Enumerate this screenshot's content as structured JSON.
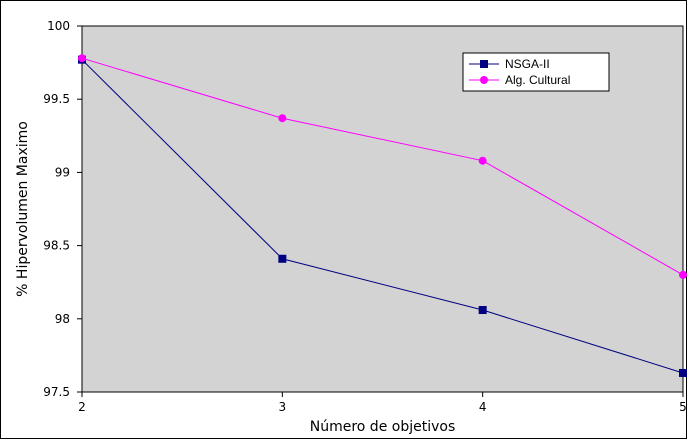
{
  "chart_data": {
    "type": "line",
    "x": [
      2,
      3,
      4,
      5
    ],
    "xlabel": "Número de objetivos",
    "ylabel": "% Hipervolumen Maximo",
    "xlim": [
      2,
      5
    ],
    "ylim": [
      97.5,
      100
    ],
    "x_ticks": [
      "2",
      "3",
      "4",
      "5"
    ],
    "y_ticks": [
      "97.5",
      "98",
      "98.5",
      "99",
      "99.5",
      "100"
    ],
    "y_tick_values": [
      97.5,
      98,
      98.5,
      99,
      99.5,
      100
    ],
    "grid": false,
    "legend_position": "top-right",
    "plot_background": "#d3d3d3",
    "series": [
      {
        "name": "NSGA-II",
        "values": [
          99.77,
          98.41,
          98.06,
          97.63
        ],
        "color": "#000080",
        "marker": "square"
      },
      {
        "name": "Alg. Cultural",
        "values": [
          99.78,
          99.37,
          99.08,
          98.3
        ],
        "color": "#ff00ff",
        "marker": "circle"
      }
    ]
  }
}
